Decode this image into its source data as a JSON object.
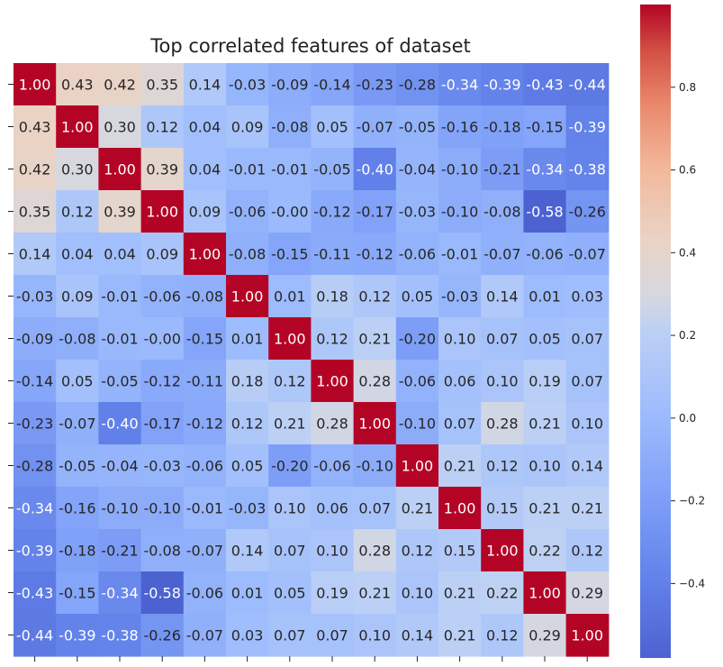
{
  "chart_data": {
    "type": "heatmap",
    "title": "Top correlated features of dataset",
    "xlabel": "",
    "ylabel": "",
    "row_labels": [],
    "column_labels": [],
    "values": [
      [
        1.0,
        0.43,
        0.42,
        0.35,
        0.14,
        -0.03,
        -0.09,
        -0.14,
        -0.23,
        -0.28,
        -0.34,
        -0.39,
        -0.43,
        -0.44
      ],
      [
        0.43,
        1.0,
        0.3,
        0.12,
        0.04,
        0.09,
        -0.08,
        0.05,
        -0.07,
        -0.05,
        -0.16,
        -0.18,
        -0.15,
        -0.39
      ],
      [
        0.42,
        0.3,
        1.0,
        0.39,
        0.04,
        -0.01,
        -0.01,
        -0.05,
        -0.4,
        -0.04,
        -0.1,
        -0.21,
        -0.34,
        -0.38
      ],
      [
        0.35,
        0.12,
        0.39,
        1.0,
        0.09,
        -0.06,
        -0.0,
        -0.12,
        -0.17,
        -0.03,
        -0.1,
        -0.08,
        -0.58,
        -0.26
      ],
      [
        0.14,
        0.04,
        0.04,
        0.09,
        1.0,
        -0.08,
        -0.15,
        -0.11,
        -0.12,
        -0.06,
        -0.01,
        -0.07,
        -0.06,
        -0.07
      ],
      [
        -0.03,
        0.09,
        -0.01,
        -0.06,
        -0.08,
        1.0,
        0.01,
        0.18,
        0.12,
        0.05,
        -0.03,
        0.14,
        0.01,
        0.03
      ],
      [
        -0.09,
        -0.08,
        -0.01,
        -0.0,
        -0.15,
        0.01,
        1.0,
        0.12,
        0.21,
        -0.2,
        0.1,
        0.07,
        0.05,
        0.07
      ],
      [
        -0.14,
        0.05,
        -0.05,
        -0.12,
        -0.11,
        0.18,
        0.12,
        1.0,
        0.28,
        -0.06,
        0.06,
        0.1,
        0.19,
        0.07
      ],
      [
        -0.23,
        -0.07,
        -0.4,
        -0.17,
        -0.12,
        0.12,
        0.21,
        0.28,
        1.0,
        -0.1,
        0.07,
        0.28,
        0.21,
        0.1
      ],
      [
        -0.28,
        -0.05,
        -0.04,
        -0.03,
        -0.06,
        0.05,
        -0.2,
        -0.06,
        -0.1,
        1.0,
        0.21,
        0.12,
        0.1,
        0.14
      ],
      [
        -0.34,
        -0.16,
        -0.1,
        -0.1,
        -0.01,
        -0.03,
        0.1,
        0.06,
        0.07,
        0.21,
        1.0,
        0.15,
        0.21,
        0.21
      ],
      [
        -0.39,
        -0.18,
        -0.21,
        -0.08,
        -0.07,
        0.14,
        0.07,
        0.1,
        0.28,
        0.12,
        0.15,
        1.0,
        0.22,
        0.12
      ],
      [
        -0.43,
        -0.15,
        -0.34,
        -0.58,
        -0.06,
        0.01,
        0.05,
        0.19,
        0.21,
        0.1,
        0.21,
        0.22,
        1.0,
        0.29
      ],
      [
        -0.44,
        -0.39,
        -0.38,
        -0.26,
        -0.07,
        0.03,
        0.07,
        0.07,
        0.1,
        0.14,
        0.21,
        0.12,
        0.29,
        1.0
      ]
    ],
    "colormap": "coolwarm",
    "color_range": [
      -0.58,
      1.0
    ],
    "colorbar_ticks": [
      0.8,
      0.6,
      0.4,
      0.2,
      0.0,
      -0.2,
      -0.4
    ],
    "colorbar_tick_labels": [
      "0.8",
      "0.6",
      "0.4",
      "0.2",
      "0.0",
      "−0.2",
      "−0.4"
    ],
    "annotations_format": "0.00",
    "grid": false,
    "legend": "colorbar right"
  }
}
